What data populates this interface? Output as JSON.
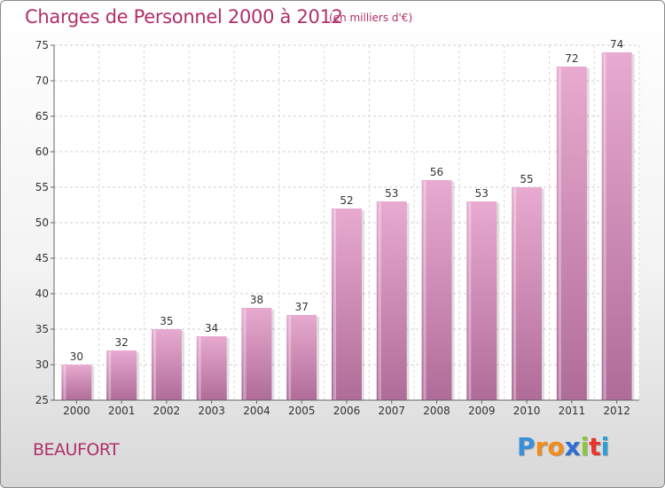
{
  "header": {
    "title": "Charges de Personnel 2000 à 2012",
    "subtitle": "(en milliers d'€)"
  },
  "footer": {
    "city": "BEAUFORT",
    "logo_letters": [
      "P",
      "r",
      "o",
      "x",
      "i",
      "t",
      "i"
    ],
    "logo_colors": [
      "#3a8fd8",
      "#f28c1b",
      "#f28c1b",
      "#2f6fd1",
      "#8cc63f",
      "#e8352e",
      "#2f9fd8"
    ]
  },
  "chart_data": {
    "type": "bar",
    "categories": [
      "2000",
      "2001",
      "2002",
      "2003",
      "2004",
      "2005",
      "2006",
      "2007",
      "2008",
      "2009",
      "2010",
      "2011",
      "2012"
    ],
    "values": [
      30,
      32,
      35,
      34,
      38,
      37,
      52,
      53,
      56,
      53,
      55,
      72,
      74
    ],
    "ylim": [
      25,
      75
    ],
    "yticks": [
      25,
      30,
      35,
      40,
      45,
      50,
      55,
      60,
      65,
      70,
      75
    ],
    "grid": true,
    "bar_color_top": "#e8aad0",
    "bar_color_bottom": "#b06c98"
  }
}
